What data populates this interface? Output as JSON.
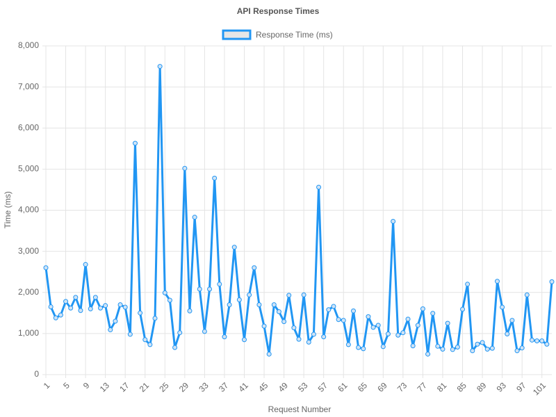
{
  "chart_data": {
    "type": "line",
    "title": "API Response Times",
    "legend": "top",
    "xlabel": "Request Number",
    "ylabel": "Time (ms)",
    "grid": true,
    "categories": [
      "1",
      null,
      null,
      null,
      "5",
      null,
      null,
      null,
      "9",
      null,
      null,
      null,
      "13",
      null,
      null,
      null,
      "17",
      null,
      null,
      null,
      "21",
      null,
      null,
      null,
      "25",
      null,
      null,
      null,
      "29",
      null,
      null,
      null,
      "33",
      null,
      null,
      null,
      "37",
      null,
      null,
      null,
      "41",
      null,
      null,
      null,
      "45",
      null,
      null,
      null,
      "49",
      null,
      null,
      null,
      "53",
      null,
      null,
      null,
      "57",
      null,
      null,
      null,
      "61",
      null,
      null,
      null,
      "65",
      null,
      null,
      null,
      "69",
      null,
      null,
      null,
      "73",
      null,
      null,
      null,
      "77",
      null,
      null,
      null,
      "81",
      null,
      null,
      null,
      "85",
      null,
      null,
      null,
      "89",
      null,
      null,
      null,
      "93",
      null,
      null,
      null,
      "97",
      null,
      null,
      null,
      "101",
      null,
      null
    ],
    "series": [
      {
        "name": "Response Time (ms)",
        "color": "#2196f3",
        "values": [
          2600,
          1650,
          1380,
          1450,
          1780,
          1620,
          1880,
          1560,
          2680,
          1600,
          1880,
          1620,
          1680,
          1090,
          1300,
          1700,
          1640,
          980,
          5630,
          1500,
          850,
          730,
          1370,
          7500,
          1990,
          1810,
          660,
          1020,
          5020,
          1550,
          3830,
          2080,
          1050,
          2080,
          4780,
          2200,
          920,
          1700,
          3100,
          1820,
          850,
          1940,
          2600,
          1700,
          1180,
          500,
          1700,
          1530,
          1290,
          1930,
          1140,
          860,
          1940,
          790,
          980,
          4560,
          920,
          1580,
          1660,
          1340,
          1320,
          730,
          1550,
          660,
          630,
          1410,
          1150,
          1200,
          680,
          990,
          3730,
          960,
          1020,
          1350,
          700,
          1200,
          1600,
          500,
          1490,
          690,
          620,
          1250,
          610,
          670,
          1590,
          2200,
          580,
          740,
          780,
          620,
          640,
          2270,
          1640,
          990,
          1320,
          580,
          650,
          1940,
          840,
          820,
          820,
          740,
          2260
        ]
      }
    ],
    "ylim": [
      0,
      8000
    ],
    "yticks": [
      0,
      {
        "value": 1000,
        "label": "1,000"
      },
      {
        "value": 2000,
        "label": "2,000"
      },
      {
        "value": 3000,
        "label": "3,000"
      },
      {
        "value": 4000,
        "label": "4,000"
      },
      {
        "value": 5000,
        "label": "5,000"
      },
      {
        "value": 6000,
        "label": "6,000"
      },
      {
        "value": 7000,
        "label": "7,000"
      },
      {
        "value": 8000,
        "label": "8,000"
      }
    ]
  }
}
